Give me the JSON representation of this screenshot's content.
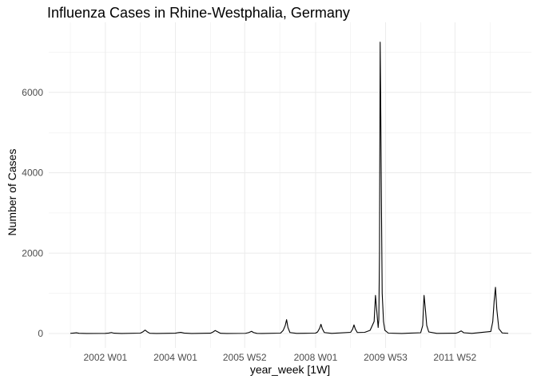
{
  "chart_data": {
    "type": "line",
    "title": "Influenza Cases in Rhine-Westphalia, Germany",
    "xlabel": "year_week [1W]",
    "ylabel": "Number of Cases",
    "x_ticks": [
      "2002 W01",
      "2004 W01",
      "2005 W52",
      "2008 W01",
      "2009 W53",
      "2011 W52"
    ],
    "y_ticks": [
      0,
      2000,
      4000,
      6000
    ],
    "ylim": [
      0,
      7300
    ],
    "grid": true,
    "line_color": "#000000",
    "grid_color": "#ebebeb",
    "x_unit": "year_week",
    "x_range": [
      "2001 W01",
      "2013 W27"
    ],
    "series": [
      {
        "points": [
          [
            "2001 W01",
            5
          ],
          [
            "2001 W06",
            12
          ],
          [
            "2001 W10",
            18
          ],
          [
            "2001 W14",
            6
          ],
          [
            "2001 W25",
            1
          ],
          [
            "2002 W01",
            3
          ],
          [
            "2002 W06",
            12
          ],
          [
            "2002 W10",
            25
          ],
          [
            "2002 W14",
            8
          ],
          [
            "2002 W25",
            1
          ],
          [
            "2003 W01",
            10
          ],
          [
            "2003 W05",
            45
          ],
          [
            "2003 W08",
            85
          ],
          [
            "2003 W11",
            45
          ],
          [
            "2003 W15",
            6
          ],
          [
            "2003 W25",
            2
          ],
          [
            "2004 W01",
            8
          ],
          [
            "2004 W05",
            22
          ],
          [
            "2004 W09",
            28
          ],
          [
            "2004 W14",
            12
          ],
          [
            "2004 W25",
            2
          ],
          [
            "2005 W01",
            8
          ],
          [
            "2005 W05",
            40
          ],
          [
            "2005 W08",
            75
          ],
          [
            "2005 W12",
            40
          ],
          [
            "2005 W16",
            6
          ],
          [
            "2005 W25",
            2
          ],
          [
            "2006 W01",
            5
          ],
          [
            "2006 W06",
            25
          ],
          [
            "2006 W10",
            55
          ],
          [
            "2006 W13",
            25
          ],
          [
            "2006 W18",
            4
          ],
          [
            "2006 W25",
            1
          ],
          [
            "2007 W01",
            10
          ],
          [
            "2007 W05",
            80
          ],
          [
            "2007 W08",
            200
          ],
          [
            "2007 W10",
            345
          ],
          [
            "2007 W12",
            150
          ],
          [
            "2007 W15",
            25
          ],
          [
            "2007 W25",
            3
          ],
          [
            "2008 W01",
            10
          ],
          [
            "2008 W04",
            40
          ],
          [
            "2008 W07",
            130
          ],
          [
            "2008 W09",
            230
          ],
          [
            "2008 W11",
            120
          ],
          [
            "2008 W14",
            25
          ],
          [
            "2008 W25",
            3
          ],
          [
            "2009 W01",
            30
          ],
          [
            "2009 W04",
            110
          ],
          [
            "2009 W06",
            215
          ],
          [
            "2009 W08",
            110
          ],
          [
            "2009 W11",
            25
          ],
          [
            "2009 W22",
            30
          ],
          [
            "2009 W30",
            80
          ],
          [
            "2009 W36",
            300
          ],
          [
            "2009 W38",
            950
          ],
          [
            "2009 W40",
            550
          ],
          [
            "2009 W42",
            150
          ],
          [
            "2009 W43",
            350
          ],
          [
            "2009 W44",
            2000
          ],
          [
            "2009 W45",
            7250
          ],
          [
            "2009 W46",
            5350
          ],
          [
            "2009 W47",
            3000
          ],
          [
            "2009 W48",
            1000
          ],
          [
            "2009 W50",
            300
          ],
          [
            "2009 W52",
            80
          ],
          [
            "2010 W05",
            10
          ],
          [
            "2010 W25",
            2
          ],
          [
            "2011 W01",
            20
          ],
          [
            "2011 W04",
            200
          ],
          [
            "2011 W05",
            600
          ],
          [
            "2011 W06",
            950
          ],
          [
            "2011 W08",
            600
          ],
          [
            "2011 W10",
            200
          ],
          [
            "2011 W13",
            40
          ],
          [
            "2011 W25",
            3
          ],
          [
            "2012 W01",
            8
          ],
          [
            "2012 W05",
            30
          ],
          [
            "2012 W09",
            65
          ],
          [
            "2012 W13",
            20
          ],
          [
            "2012 W25",
            3
          ],
          [
            "2013 W01",
            50
          ],
          [
            "2013 W04",
            300
          ],
          [
            "2013 W06",
            800
          ],
          [
            "2013 W08",
            1150
          ],
          [
            "2013 W10",
            600
          ],
          [
            "2013 W13",
            120
          ],
          [
            "2013 W18",
            15
          ],
          [
            "2013 W27",
            5
          ]
        ]
      }
    ]
  }
}
